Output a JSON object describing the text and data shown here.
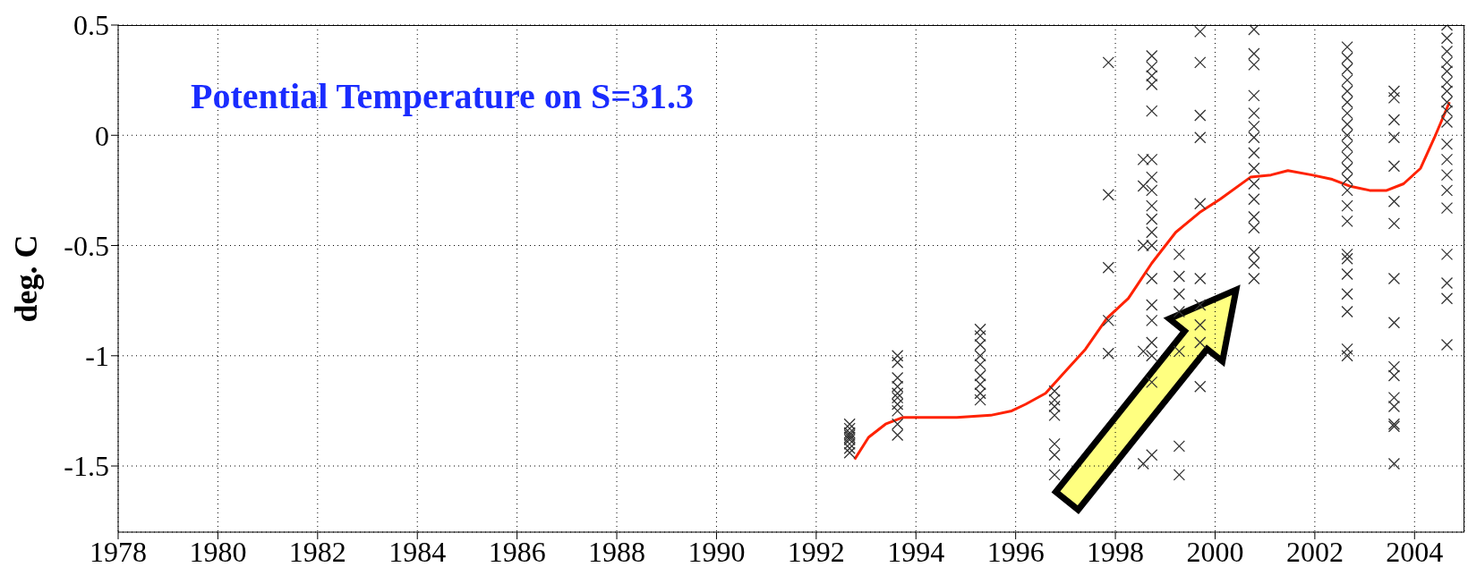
{
  "chart_data": {
    "type": "scatter",
    "title": "Potential Temperature on S=31.3",
    "ylabel": "deg. C",
    "xlim": [
      1978,
      2005
    ],
    "xticks": [
      1978,
      1980,
      1982,
      1984,
      1986,
      1988,
      1990,
      1992,
      1994,
      1996,
      1998,
      2000,
      2002,
      2004
    ],
    "ylim": [
      -1.8,
      0.5
    ],
    "yticks": [
      -1.5,
      -1,
      -0.5,
      0,
      0.5
    ],
    "grid": true,
    "series": [
      {
        "marker": "cross",
        "color": "#333333",
        "x": [
          1992.67,
          1992.67,
          1992.67,
          1992.67,
          1992.67,
          1992.67,
          1992.67,
          1992.67,
          1992.67,
          1993.63,
          1993.63,
          1993.63,
          1993.63,
          1993.63,
          1993.63,
          1993.63,
          1993.63,
          1993.63,
          1993.63,
          1995.29,
          1995.29,
          1995.29,
          1995.29,
          1995.29,
          1995.29,
          1995.29,
          1995.29,
          1995.29,
          1996.78,
          1996.78,
          1996.78,
          1996.78,
          1996.78,
          1996.78,
          1996.78,
          1997.86,
          1997.86,
          1997.86,
          1997.86,
          1997.86,
          1998.56,
          1998.56,
          1998.56,
          1998.56,
          1998.56,
          1998.73,
          1998.73,
          1998.73,
          1998.73,
          1998.73,
          1998.73,
          1998.73,
          1998.73,
          1998.73,
          1998.73,
          1998.73,
          1998.73,
          1998.73,
          1998.73,
          1998.73,
          1998.73,
          1998.73,
          1998.73,
          1998.73,
          1999.28,
          1999.28,
          1999.28,
          1999.28,
          1999.28,
          1999.28,
          1999.28,
          1999.7,
          1999.7,
          1999.7,
          1999.7,
          1999.7,
          1999.7,
          1999.7,
          1999.7,
          1999.7,
          1999.7,
          2000.78,
          2000.78,
          2000.78,
          2000.78,
          2000.78,
          2000.78,
          2000.78,
          2000.78,
          2000.78,
          2000.78,
          2000.78,
          2000.78,
          2000.78,
          2000.78,
          2000.78,
          2000.78,
          2002.65,
          2002.65,
          2002.65,
          2002.65,
          2002.65,
          2002.65,
          2002.65,
          2002.65,
          2002.65,
          2002.65,
          2002.65,
          2002.65,
          2002.65,
          2002.65,
          2002.65,
          2002.65,
          2002.65,
          2002.65,
          2002.65,
          2002.65,
          2002.65,
          2002.65,
          2002.65,
          2003.59,
          2003.59,
          2003.59,
          2003.59,
          2003.59,
          2003.59,
          2003.59,
          2003.59,
          2003.59,
          2003.59,
          2003.59,
          2003.59,
          2003.59,
          2003.59,
          2003.59,
          2003.59,
          2004.65,
          2004.65,
          2004.65,
          2004.65,
          2004.65,
          2004.65,
          2004.65,
          2004.65,
          2004.65,
          2004.65,
          2004.65,
          2004.65,
          2004.65,
          2004.65,
          2004.65,
          2004.65,
          2004.65,
          2004.65,
          2004.65
        ],
        "values": [
          -1.31,
          -1.33,
          -1.35,
          -1.36,
          -1.37,
          -1.38,
          -1.4,
          -1.42,
          -1.44,
          -1.0,
          -1.03,
          -1.1,
          -1.14,
          -1.17,
          -1.19,
          -1.22,
          -1.25,
          -1.31,
          -1.36,
          -0.88,
          -0.91,
          -0.95,
          -1.0,
          -1.04,
          -1.09,
          -1.13,
          -1.17,
          -1.2,
          -1.16,
          -1.2,
          -1.23,
          -1.27,
          -1.4,
          -1.45,
          -1.54,
          0.33,
          -0.27,
          -0.6,
          -0.84,
          -0.99,
          -0.11,
          -0.23,
          -0.5,
          -0.98,
          -1.49,
          0.36,
          0.31,
          0.27,
          0.23,
          0.11,
          -0.11,
          -0.19,
          -0.25,
          -0.32,
          -0.38,
          -0.44,
          -0.5,
          -0.65,
          -0.77,
          -0.84,
          -0.94,
          -1.0,
          -1.12,
          -1.45,
          -0.54,
          -0.64,
          -0.72,
          -0.8,
          -0.98,
          -1.41,
          -1.54,
          0.47,
          0.33,
          0.09,
          -0.01,
          -0.31,
          -0.65,
          -0.77,
          -0.86,
          -0.94,
          -1.14,
          0.48,
          0.37,
          0.32,
          0.18,
          0.1,
          0.04,
          -0.01,
          -0.08,
          -0.15,
          -0.22,
          -0.29,
          -0.37,
          -0.42,
          -0.53,
          -0.58,
          -0.65,
          0.4,
          0.35,
          0.3,
          0.25,
          0.2,
          0.15,
          0.1,
          0.05,
          0,
          -0.05,
          -0.1,
          -0.15,
          -0.2,
          -0.25,
          -0.32,
          -0.39,
          -0.54,
          -0.56,
          -0.63,
          -0.72,
          -0.8,
          -0.97,
          -1.0,
          0.2,
          0.17,
          0.07,
          -0.01,
          -0.14,
          -0.3,
          -0.4,
          -0.65,
          -0.85,
          -1.05,
          -1.09,
          -1.19,
          -1.23,
          -1.31,
          -1.32,
          -1.49,
          0.5,
          0.44,
          0.38,
          0.33,
          0.29,
          0.24,
          0.2,
          0.15,
          0.11,
          0.06,
          -0.04,
          -0.11,
          -0.18,
          -0.25,
          -0.33,
          -0.54,
          -0.67,
          -0.74,
          -0.95
        ]
      },
      {
        "type": "line",
        "marker": "none",
        "line_style": "solid",
        "color": "#ff2200",
        "x": [
          1992.77,
          1993.05,
          1993.39,
          1993.73,
          1994.14,
          1994.82,
          1995.5,
          1995.92,
          1996.2,
          1996.6,
          1997.0,
          1997.4,
          1997.83,
          1998.26,
          1998.73,
          1999.21,
          1999.69,
          2000.1,
          2000.71,
          2001.12,
          2001.46,
          2001.94,
          2002.35,
          2002.69,
          2003.1,
          2003.44,
          2003.78,
          2004.12,
          2004.4,
          2004.7
        ],
        "values": [
          -1.47,
          -1.37,
          -1.31,
          -1.28,
          -1.28,
          -1.28,
          -1.27,
          -1.25,
          -1.22,
          -1.17,
          -1.07,
          -0.97,
          -0.83,
          -0.74,
          -0.58,
          -0.44,
          -0.35,
          -0.29,
          -0.19,
          -0.18,
          -0.16,
          -0.18,
          -0.2,
          -0.23,
          -0.25,
          -0.25,
          -0.22,
          -0.15,
          -0.01,
          0.15
        ]
      }
    ]
  }
}
